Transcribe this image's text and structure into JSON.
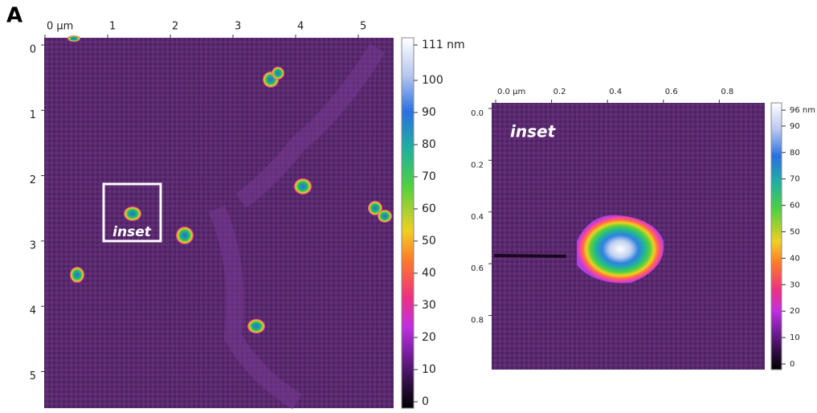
{
  "panel_label": "A",
  "main_image": {
    "xticks": [
      {
        "value": 0,
        "label": "0 µm"
      },
      1,
      2,
      3,
      4,
      5
    ],
    "yticks": [
      0,
      1,
      2,
      3,
      4,
      5
    ],
    "inset_label": "inset"
  },
  "main_colorbar": {
    "ticks": [
      0,
      10,
      20,
      30,
      40,
      50,
      60,
      70,
      80,
      90,
      100,
      {
        "value": 111,
        "label": "111 nm"
      }
    ]
  },
  "inset_image": {
    "label": "inset",
    "xticks": [
      {
        "value": 0,
        "label": "0.0 µm"
      },
      0.2,
      0.4,
      0.6,
      0.8
    ],
    "yticks": [
      {
        "value": 0,
        "label": "0.0"
      },
      0.2,
      0.4,
      0.6,
      0.8
    ]
  },
  "inset_colorbar": {
    "ticks": [
      0,
      10,
      20,
      30,
      40,
      50,
      60,
      70,
      80,
      90,
      {
        "value": 96,
        "label": "96 nm"
      }
    ]
  }
}
